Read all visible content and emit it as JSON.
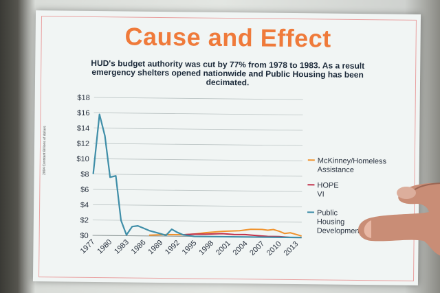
{
  "slide": {
    "title": "Cause and Effect",
    "subtitle": "HUD's budget authority was cut by 77% from 1978 to 1983.  As a result\nemergency shelters opened nationwide and Public Housing has been\ndecimated."
  },
  "chart_data": {
    "type": "line",
    "ylabel": "2004 Constant Billions of dollars",
    "ylim": [
      0,
      18
    ],
    "y_ticks": [
      "$0",
      "$2",
      "$4",
      "$6",
      "$8",
      "$10",
      "$12",
      "$14",
      "$16",
      "$18"
    ],
    "x_ticks": [
      "1977",
      "1980",
      "1983",
      "1986",
      "1989",
      "1992",
      "1995",
      "1998",
      "2001",
      "2004",
      "2007",
      "2010",
      "2013"
    ],
    "xlim": [
      1977,
      2014
    ],
    "grid": true,
    "legend_position": "right",
    "series": [
      {
        "name": "McKinney/Homeless Assistance",
        "color": "#f0922c",
        "x": [
          1987,
          1990,
          1993,
          1995,
          1997,
          2000,
          2003,
          2005,
          2007,
          2008,
          2009,
          2010,
          2011,
          2012,
          2013,
          2014
        ],
        "values": [
          0.1,
          0.2,
          0.2,
          0.3,
          0.5,
          0.7,
          0.8,
          1.0,
          1.0,
          0.9,
          1.0,
          0.8,
          0.5,
          0.6,
          0.4,
          0.2
        ]
      },
      {
        "name": "HOPE VI",
        "color": "#c0304a",
        "x": [
          1993,
          1995,
          1997,
          2000,
          2002,
          2004,
          2006,
          2008,
          2010,
          2012,
          2014
        ],
        "values": [
          0.2,
          0.3,
          0.3,
          0.4,
          0.3,
          0.3,
          0.2,
          0.1,
          0.1,
          0.0,
          0.0
        ]
      },
      {
        "name": "Public Housing Development",
        "color": "#3f8ea8",
        "x": [
          1977,
          1978,
          1979,
          1980,
          1981,
          1982,
          1983,
          1984,
          1985,
          1986,
          1987,
          1988,
          1989,
          1990,
          1991,
          1992,
          1993,
          1994,
          1995,
          1996,
          2000,
          2014
        ],
        "values": [
          8.0,
          15.8,
          13.0,
          7.6,
          7.8,
          2.0,
          0.1,
          1.2,
          1.3,
          1.0,
          0.7,
          0.5,
          0.3,
          0.1,
          0.9,
          0.5,
          0.2,
          0.1,
          0.0,
          0.0,
          0.0,
          0.0
        ]
      }
    ],
    "legend": [
      "McKinney/Homeless Assistance",
      "HOPE VI",
      "Public Housing Development"
    ]
  }
}
